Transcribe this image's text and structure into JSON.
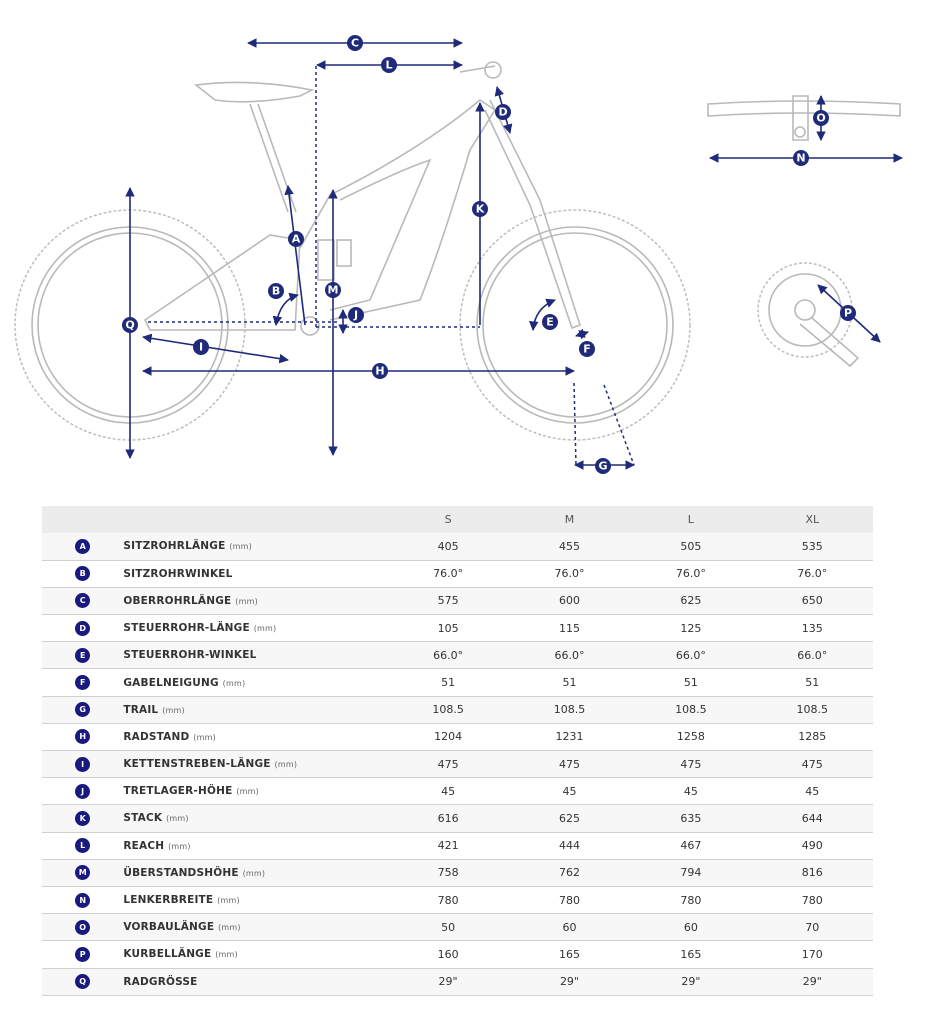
{
  "header": {
    "sizes": [
      "S",
      "M",
      "L",
      "XL"
    ]
  },
  "rows": [
    {
      "letter": "A",
      "name": "SITZROHRLÄNGE",
      "unit": "(mm)",
      "values": [
        "405",
        "455",
        "505",
        "535"
      ]
    },
    {
      "letter": "B",
      "name": "SITZROHRWINKEL",
      "unit": "",
      "values": [
        "76.0°",
        "76.0°",
        "76.0°",
        "76.0°"
      ]
    },
    {
      "letter": "C",
      "name": "OBERROHRLÄNGE",
      "unit": "(mm)",
      "values": [
        "575",
        "600",
        "625",
        "650"
      ]
    },
    {
      "letter": "D",
      "name": "STEUERROHR-LÄNGE",
      "unit": "(mm)",
      "values": [
        "105",
        "115",
        "125",
        "135"
      ]
    },
    {
      "letter": "E",
      "name": "STEUERROHR-WINKEL",
      "unit": "",
      "values": [
        "66.0°",
        "66.0°",
        "66.0°",
        "66.0°"
      ]
    },
    {
      "letter": "F",
      "name": "GABELNEIGUNG",
      "unit": "(mm)",
      "values": [
        "51",
        "51",
        "51",
        "51"
      ]
    },
    {
      "letter": "G",
      "name": "TRAIL",
      "unit": "(mm)",
      "values": [
        "108.5",
        "108.5",
        "108.5",
        "108.5"
      ]
    },
    {
      "letter": "H",
      "name": "RADSTAND",
      "unit": "(mm)",
      "values": [
        "1204",
        "1231",
        "1258",
        "1285"
      ]
    },
    {
      "letter": "I",
      "name": "KETTENSTREBEN-LÄNGE",
      "unit": "(mm)",
      "values": [
        "475",
        "475",
        "475",
        "475"
      ]
    },
    {
      "letter": "J",
      "name": "TRETLAGER-HÖHE",
      "unit": "(mm)",
      "values": [
        "45",
        "45",
        "45",
        "45"
      ]
    },
    {
      "letter": "K",
      "name": "STACK",
      "unit": "(mm)",
      "values": [
        "616",
        "625",
        "635",
        "644"
      ]
    },
    {
      "letter": "L",
      "name": "REACH",
      "unit": "(mm)",
      "values": [
        "421",
        "444",
        "467",
        "490"
      ]
    },
    {
      "letter": "M",
      "name": "ÜBERSTANDSHÖHE",
      "unit": "(mm)",
      "values": [
        "758",
        "762",
        "794",
        "816"
      ]
    },
    {
      "letter": "N",
      "name": "LENKERBREITE",
      "unit": "(mm)",
      "values": [
        "780",
        "780",
        "780",
        "780"
      ]
    },
    {
      "letter": "O",
      "name": "VORBAULÄNGE",
      "unit": "(mm)",
      "values": [
        "50",
        "60",
        "60",
        "70"
      ]
    },
    {
      "letter": "P",
      "name": "KURBELLÄNGE",
      "unit": "(mm)",
      "values": [
        "160",
        "165",
        "165",
        "170"
      ]
    },
    {
      "letter": "Q",
      "name": "RADGRÖSSE",
      "unit": "",
      "values": [
        "29\"",
        "29\"",
        "29\"",
        "29\""
      ]
    }
  ]
}
